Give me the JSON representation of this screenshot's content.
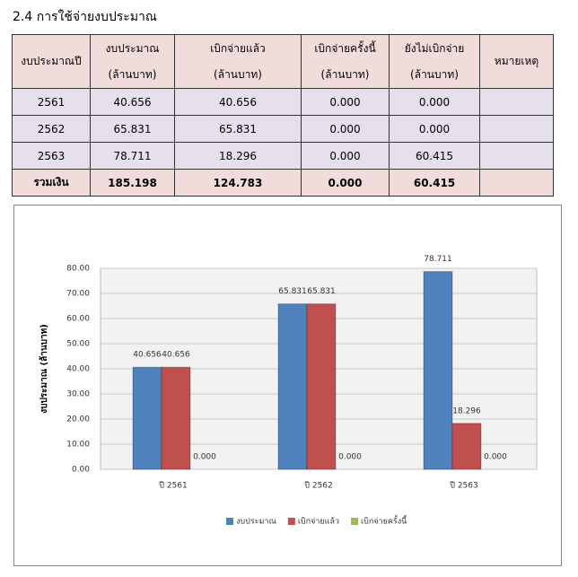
{
  "heading": "2.4  การใช้จ่ายงบประมาณ",
  "table": {
    "header": [
      [
        "งบประมาณปี"
      ],
      [
        "งบประมาณ",
        "(ล้านบาท)"
      ],
      [
        "เบิกจ่ายแล้ว",
        "(ล้านบาท)"
      ],
      [
        "เบิกจ่ายครั้งนี้",
        "(ล้านบาท)"
      ],
      [
        "ยังไม่เบิกจ่าย",
        "(ล้านบาท)"
      ],
      [
        "หมายเหตุ"
      ]
    ],
    "rows": [
      [
        "2561",
        "40.656",
        "40.656",
        "0.000",
        "0.000"
      ],
      [
        "2562",
        "65.831",
        "65.831",
        "0.000",
        "0.000"
      ],
      [
        "2563",
        "78.711",
        "18.296",
        "0.000",
        "60.415"
      ]
    ],
    "total": [
      "รวมเงิน",
      "185.198",
      "124.783",
      "0.000",
      "60.415"
    ]
  },
  "chart_data": {
    "type": "bar",
    "y_label": "งบประมาณ (ล้านบาท)",
    "categories": [
      "ปี 2561",
      "ปี 2562",
      "ปี 2563"
    ],
    "series": [
      {
        "name": "งบประมาณ",
        "color": "#4f81bd",
        "values": [
          40.656,
          65.831,
          78.711
        ],
        "value_labels": [
          "40.656",
          "65.831",
          "78.711"
        ]
      },
      {
        "name": "เบิกจ่ายแล้ว",
        "color": "#c0504d",
        "values": [
          40.656,
          65.831,
          18.296
        ],
        "value_labels": [
          "40.656",
          "65.831",
          "18.296"
        ]
      },
      {
        "name": "เบิกจ่ายครั้งนี้",
        "color": "#9bbb59",
        "values": [
          0,
          0,
          0
        ],
        "value_labels": [
          "0.000",
          "0.000",
          "0.000"
        ]
      }
    ],
    "ylim": [
      0,
      80
    ],
    "yticks": [
      {
        "value": 0,
        "label": "0.00"
      },
      {
        "value": 10,
        "label": "10.00"
      },
      {
        "value": 20,
        "label": "20.00"
      },
      {
        "value": 30,
        "label": "30.00"
      },
      {
        "value": 40,
        "label": "40.00"
      },
      {
        "value": 50,
        "label": "50.00"
      },
      {
        "value": 60,
        "label": "60.00"
      },
      {
        "value": 70,
        "label": "70.00"
      },
      {
        "value": 80,
        "label": "80.00"
      }
    ],
    "grid": true,
    "legend": "bottom"
  }
}
